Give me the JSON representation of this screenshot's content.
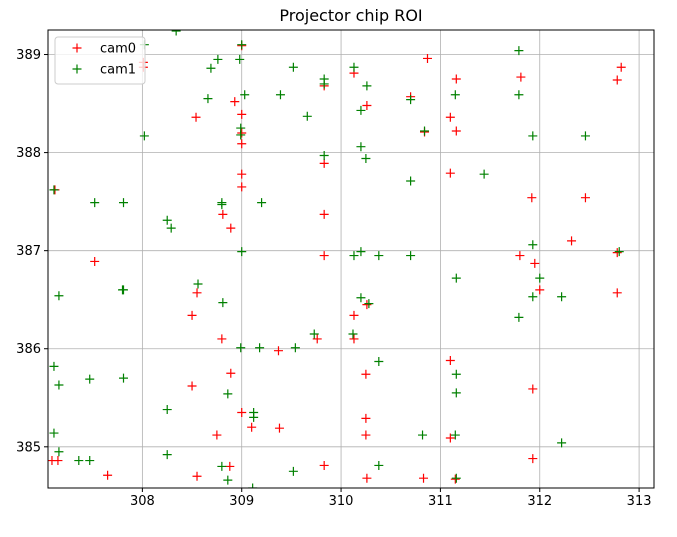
{
  "chart_data": {
    "type": "scatter",
    "title": "Projector chip ROI",
    "xlabel": "",
    "ylabel": "",
    "xlim": [
      307.05,
      313.15
    ],
    "ylim": [
      384.58,
      389.25
    ],
    "xticks": [
      "308",
      "309",
      "310",
      "311",
      "312",
      "313"
    ],
    "yticks": [
      "385",
      "386",
      "387",
      "388",
      "389"
    ],
    "xtick_values": [
      308,
      309,
      310,
      311,
      312,
      313
    ],
    "ytick_values": [
      385,
      386,
      387,
      388,
      389
    ],
    "grid": true,
    "legend_position": "top-left",
    "marker": "plus",
    "series": [
      {
        "name": "cam0",
        "color": "#ff0000",
        "points": [
          [
            309.0,
            389.09
          ],
          [
            310.87,
            388.96
          ],
          [
            308.01,
            388.92
          ],
          [
            308.01,
            388.87
          ],
          [
            309.0,
            388.09
          ],
          [
            310.13,
            388.81
          ],
          [
            311.16,
            388.75
          ],
          [
            311.81,
            388.77
          ],
          [
            312.78,
            388.74
          ],
          [
            312.82,
            388.87
          ],
          [
            309.83,
            388.68
          ],
          [
            310.7,
            388.57
          ],
          [
            308.93,
            388.52
          ],
          [
            310.26,
            388.48
          ],
          [
            308.54,
            388.36
          ],
          [
            309.0,
            388.39
          ],
          [
            311.1,
            388.36
          ],
          [
            311.16,
            388.22
          ],
          [
            310.84,
            388.21
          ],
          [
            309.0,
            388.2
          ],
          [
            309.83,
            387.89
          ],
          [
            311.1,
            387.79
          ],
          [
            309.0,
            387.78
          ],
          [
            309.0,
            387.65
          ],
          [
            307.12,
            387.62
          ],
          [
            311.92,
            387.54
          ],
          [
            312.46,
            387.54
          ],
          [
            308.81,
            387.37
          ],
          [
            309.83,
            387.37
          ],
          [
            308.89,
            387.23
          ],
          [
            312.32,
            387.1
          ],
          [
            312.78,
            386.98
          ],
          [
            309.83,
            386.95
          ],
          [
            311.8,
            386.95
          ],
          [
            307.52,
            386.89
          ],
          [
            311.95,
            386.87
          ],
          [
            308.55,
            386.57
          ],
          [
            312.0,
            386.6
          ],
          [
            312.78,
            386.57
          ],
          [
            310.26,
            386.45
          ],
          [
            308.5,
            386.34
          ],
          [
            310.13,
            386.34
          ],
          [
            308.8,
            386.1
          ],
          [
            309.76,
            386.1
          ],
          [
            310.13,
            386.1
          ],
          [
            309.37,
            385.98
          ],
          [
            311.1,
            385.88
          ],
          [
            310.25,
            385.74
          ],
          [
            308.89,
            385.75
          ],
          [
            308.5,
            385.62
          ],
          [
            311.93,
            385.59
          ],
          [
            309.0,
            385.35
          ],
          [
            310.25,
            385.29
          ],
          [
            309.1,
            385.2
          ],
          [
            309.38,
            385.19
          ],
          [
            308.75,
            385.12
          ],
          [
            310.25,
            385.12
          ],
          [
            311.1,
            385.09
          ],
          [
            307.15,
            384.86
          ],
          [
            307.09,
            384.86
          ],
          [
            311.93,
            384.88
          ],
          [
            309.83,
            384.81
          ],
          [
            308.88,
            384.8
          ],
          [
            307.65,
            384.71
          ],
          [
            308.55,
            384.7
          ],
          [
            310.26,
            384.68
          ],
          [
            310.83,
            384.68
          ],
          [
            311.15,
            384.67
          ]
        ]
      },
      {
        "name": "cam1",
        "color": "#008000",
        "points": [
          [
            308.02,
            389.1
          ],
          [
            308.34,
            389.24
          ],
          [
            309.0,
            389.1
          ],
          [
            311.79,
            389.04
          ],
          [
            308.76,
            388.95
          ],
          [
            308.98,
            388.95
          ],
          [
            309.52,
            388.87
          ],
          [
            310.13,
            388.87
          ],
          [
            308.69,
            388.86
          ],
          [
            309.83,
            388.75
          ],
          [
            310.26,
            388.68
          ],
          [
            309.83,
            388.7
          ],
          [
            309.03,
            388.59
          ],
          [
            309.39,
            388.59
          ],
          [
            311.15,
            388.59
          ],
          [
            311.79,
            388.59
          ],
          [
            308.66,
            388.55
          ],
          [
            310.7,
            388.54
          ],
          [
            310.2,
            388.43
          ],
          [
            309.66,
            388.37
          ],
          [
            308.99,
            388.25
          ],
          [
            308.99,
            388.18
          ],
          [
            310.84,
            388.22
          ],
          [
            308.02,
            388.17
          ],
          [
            311.93,
            388.17
          ],
          [
            312.46,
            388.17
          ],
          [
            310.2,
            388.06
          ],
          [
            309.83,
            387.97
          ],
          [
            310.25,
            387.94
          ],
          [
            311.44,
            387.78
          ],
          [
            310.7,
            387.71
          ],
          [
            307.11,
            387.62
          ],
          [
            307.52,
            387.49
          ],
          [
            307.81,
            387.49
          ],
          [
            308.8,
            387.49
          ],
          [
            309.2,
            387.49
          ],
          [
            308.8,
            387.47
          ],
          [
            308.25,
            387.31
          ],
          [
            308.29,
            387.23
          ],
          [
            311.93,
            387.06
          ],
          [
            309.0,
            386.99
          ],
          [
            310.2,
            386.99
          ],
          [
            312.8,
            386.99
          ],
          [
            310.13,
            386.95
          ],
          [
            310.38,
            386.95
          ],
          [
            310.7,
            386.95
          ],
          [
            312.0,
            386.72
          ],
          [
            311.16,
            386.72
          ],
          [
            308.56,
            386.66
          ],
          [
            307.81,
            386.6
          ],
          [
            307.8,
            386.6
          ],
          [
            307.16,
            386.54
          ],
          [
            311.93,
            386.53
          ],
          [
            312.22,
            386.53
          ],
          [
            310.2,
            386.52
          ],
          [
            308.81,
            386.47
          ],
          [
            310.28,
            386.46
          ],
          [
            311.79,
            386.32
          ],
          [
            309.73,
            386.15
          ],
          [
            310.12,
            386.15
          ],
          [
            308.99,
            386.01
          ],
          [
            309.18,
            386.01
          ],
          [
            309.54,
            386.01
          ],
          [
            307.11,
            385.82
          ],
          [
            310.38,
            385.87
          ],
          [
            311.16,
            385.74
          ],
          [
            307.16,
            385.63
          ],
          [
            307.47,
            385.69
          ],
          [
            307.81,
            385.7
          ],
          [
            308.86,
            385.54
          ],
          [
            311.16,
            385.55
          ],
          [
            308.25,
            385.38
          ],
          [
            309.12,
            385.3
          ],
          [
            309.12,
            385.35
          ],
          [
            307.11,
            385.14
          ],
          [
            310.82,
            385.12
          ],
          [
            311.15,
            385.12
          ],
          [
            312.22,
            385.04
          ],
          [
            307.16,
            384.95
          ],
          [
            308.25,
            384.92
          ],
          [
            307.36,
            384.86
          ],
          [
            307.47,
            384.86
          ],
          [
            310.38,
            384.81
          ],
          [
            308.8,
            384.8
          ],
          [
            309.52,
            384.75
          ],
          [
            308.86,
            384.66
          ],
          [
            311.16,
            384.68
          ],
          [
            309.11,
            384.58
          ]
        ]
      }
    ]
  }
}
